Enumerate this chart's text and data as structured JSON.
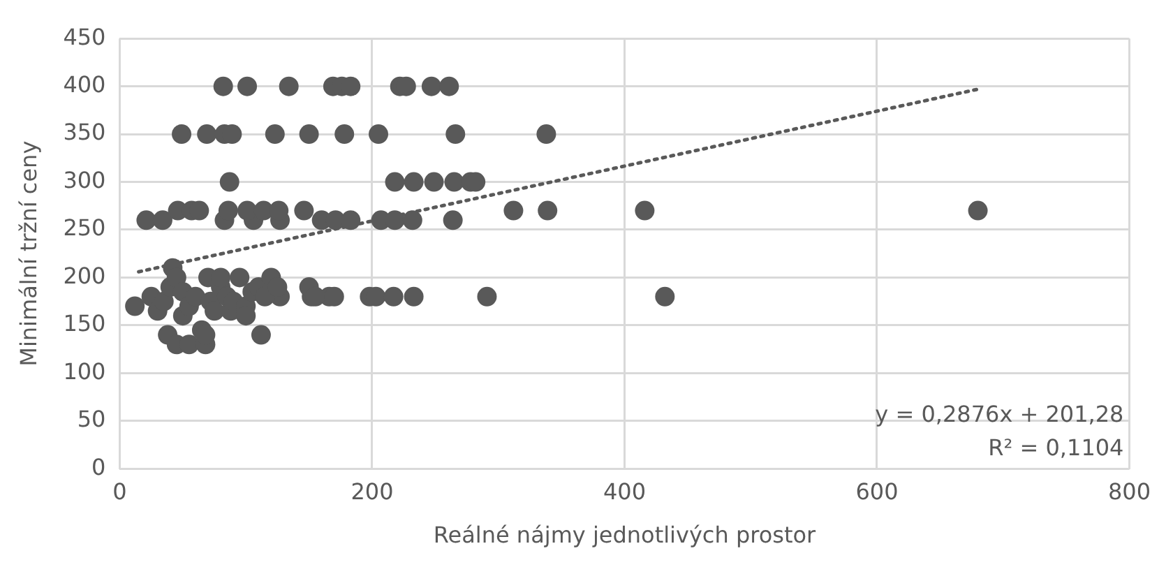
{
  "chart_data": {
    "type": "scatter",
    "xlabel": "Reálné nájmy jednotlivých prostor",
    "ylabel": "Minimální tržní ceny",
    "xlim": [
      0,
      800
    ],
    "xticks": [
      0,
      200,
      400,
      600,
      800
    ],
    "ylim": [
      0,
      450
    ],
    "yticks": [
      0,
      50,
      100,
      150,
      200,
      250,
      300,
      350,
      400,
      450
    ],
    "grid": true,
    "legend": false,
    "annotations": [
      "y = 0,2876x + 201,28",
      "R² = 0,1104"
    ],
    "series": [
      {
        "type": "scatter",
        "color": "#595959",
        "marker": "circle",
        "x": [
          82,
          101,
          134,
          169,
          176,
          183,
          222,
          227,
          247,
          261,
          49,
          69,
          83,
          89,
          123,
          150,
          178,
          205,
          266,
          338,
          87,
          218,
          233,
          249,
          265,
          278,
          282,
          21,
          34,
          83,
          106,
          127,
          160,
          171,
          183,
          207,
          218,
          232,
          264,
          46,
          57,
          63,
          86,
          101,
          114,
          126,
          146,
          312,
          339,
          416,
          680,
          198,
          203,
          217,
          233,
          291,
          432,
          127,
          152,
          166,
          12,
          25,
          30,
          35,
          38,
          40,
          42,
          45,
          45,
          50,
          50,
          55,
          55,
          60,
          65,
          68,
          68,
          70,
          72,
          75,
          80,
          80,
          85,
          88,
          90,
          95,
          100,
          100,
          105,
          110,
          112,
          115,
          120,
          125,
          150,
          155,
          170
        ],
        "values": [
          400,
          400,
          400,
          400,
          400,
          400,
          400,
          400,
          400,
          400,
          350,
          350,
          350,
          350,
          350,
          350,
          350,
          350,
          350,
          350,
          300,
          300,
          300,
          300,
          300,
          300,
          300,
          260,
          260,
          260,
          260,
          260,
          260,
          260,
          260,
          260,
          260,
          260,
          260,
          270,
          270,
          270,
          270,
          270,
          270,
          270,
          270,
          270,
          270,
          270,
          270,
          180,
          180,
          180,
          180,
          180,
          180,
          180,
          180,
          180,
          170,
          180,
          165,
          175,
          140,
          190,
          210,
          130,
          200,
          160,
          185,
          130,
          170,
          180,
          145,
          130,
          140,
          200,
          175,
          165,
          190,
          200,
          180,
          165,
          175,
          200,
          170,
          160,
          185,
          190,
          140,
          180,
          200,
          190,
          190,
          180,
          180
        ]
      },
      {
        "type": "line",
        "color": "#595959",
        "marker": "none",
        "line_style": "dotted",
        "x": [
          15,
          680
        ],
        "values": [
          206,
          397
        ]
      }
    ]
  }
}
